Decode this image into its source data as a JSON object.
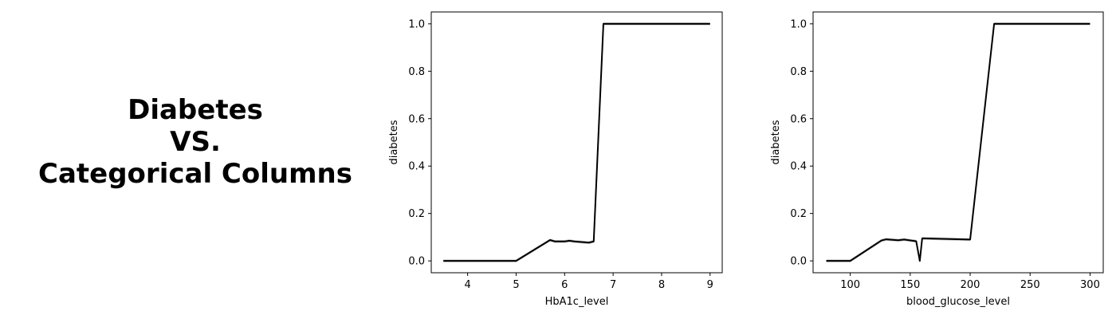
{
  "heading": {
    "line1": "Diabetes",
    "line2": "VS.",
    "line3": "Categorical Columns"
  },
  "colors": {
    "line": "#000000",
    "band": "#9e9e9e"
  },
  "chart_data": [
    {
      "type": "line",
      "xlabel": "HbA1c_level",
      "ylabel": "diabetes",
      "xlim": [
        3.25,
        9.25
      ],
      "ylim": [
        -0.05,
        1.05
      ],
      "xticks": [
        4,
        5,
        6,
        7,
        8,
        9
      ],
      "yticks": [
        0.0,
        0.2,
        0.4,
        0.6,
        0.8,
        1.0
      ],
      "grid": false,
      "x": [
        3.5,
        4.0,
        4.5,
        4.8,
        5.0,
        5.7,
        5.8,
        6.0,
        6.1,
        6.2,
        6.5,
        6.6,
        6.8,
        7.0,
        8.0,
        9.0
      ],
      "y": [
        0.0,
        0.0,
        0.0,
        0.0,
        0.0,
        0.088,
        0.082,
        0.082,
        0.085,
        0.082,
        0.077,
        0.082,
        1.0,
        1.0,
        1.0,
        1.0
      ],
      "band": 0.006
    },
    {
      "type": "line",
      "xlabel": "blood_glucose_level",
      "ylabel": "diabetes",
      "xlim": [
        69,
        311
      ],
      "ylim": [
        -0.05,
        1.05
      ],
      "xticks": [
        100,
        150,
        200,
        250,
        300
      ],
      "yticks": [
        0.0,
        0.2,
        0.4,
        0.6,
        0.8,
        1.0
      ],
      "grid": false,
      "x": [
        80,
        85,
        90,
        100,
        126,
        130,
        140,
        145,
        155,
        158,
        160,
        200,
        220,
        240,
        260,
        280,
        300
      ],
      "y": [
        0.0,
        0.0,
        0.0,
        0.0,
        0.086,
        0.091,
        0.087,
        0.09,
        0.083,
        0.0,
        0.095,
        0.09,
        1.0,
        1.0,
        1.0,
        1.0,
        1.0
      ],
      "band": 0.006
    }
  ]
}
